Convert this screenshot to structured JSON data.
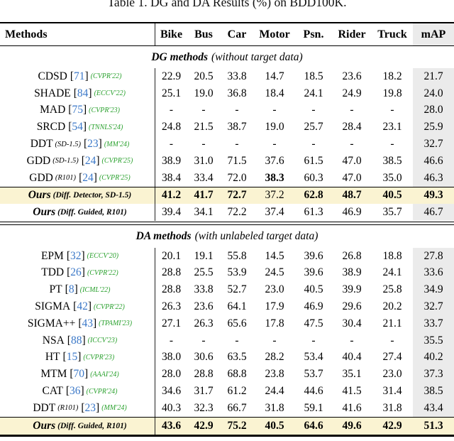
{
  "title": "Table 1. DG and DA Results (%) on BDD100K.",
  "colors": {
    "highlight_row": "#faf3d2",
    "map_column": "#ebebeb",
    "ref_blue": "#3b78c8",
    "venue_green": "#2aa12e"
  },
  "chart_data": {
    "type": "table",
    "title": "Table 1. DG and DA Results (%) on BDD100K.",
    "columns": [
      "Methods",
      "Bike",
      "Bus",
      "Car",
      "Motor",
      "Psn.",
      "Rider",
      "Truck",
      "mAP"
    ],
    "sections": [
      {
        "name": "DG methods",
        "desc": "(without target data)",
        "rows": [
          {
            "method": "CDSD",
            "variant": "",
            "ref": "71",
            "venue": "(CVPR'22)",
            "values": [
              "22.9",
              "20.5",
              "33.8",
              "14.7",
              "18.5",
              "23.6",
              "18.2",
              "21.7"
            ]
          },
          {
            "method": "SHADE",
            "variant": "",
            "ref": "84",
            "venue": "(ECCV'22)",
            "values": [
              "25.1",
              "19.0",
              "36.8",
              "18.4",
              "24.1",
              "24.9",
              "19.8",
              "24.0"
            ]
          },
          {
            "method": "MAD",
            "variant": "",
            "ref": "75",
            "venue": "(CVPR'23)",
            "values": [
              "-",
              "-",
              "-",
              "-",
              "-",
              "-",
              "-",
              "28.0"
            ]
          },
          {
            "method": "SRCD",
            "variant": "",
            "ref": "54",
            "venue": "(TNNLS'24)",
            "values": [
              "24.8",
              "21.5",
              "38.7",
              "19.0",
              "25.7",
              "28.4",
              "23.1",
              "25.9"
            ]
          },
          {
            "method": "DDT",
            "variant": "(SD-1.5)",
            "ref": "23",
            "venue": "(MM'24)",
            "values": [
              "-",
              "-",
              "-",
              "-",
              "-",
              "-",
              "-",
              "32.7"
            ]
          },
          {
            "method": "GDD",
            "variant": "(SD-1.5)",
            "ref": "24",
            "venue": "(CVPR'25)",
            "values": [
              "38.9",
              "31.0",
              "71.5",
              "37.6",
              "61.5",
              "47.0",
              "38.5",
              "46.6"
            ]
          },
          {
            "method": "GDD",
            "variant": "(R101)",
            "ref": "24",
            "venue": "(CVPR'25)",
            "values": [
              "38.4",
              "33.4",
              "72.0",
              "38.3",
              "60.3",
              "47.0",
              "35.0",
              "46.3"
            ],
            "bold": [
              0,
              0,
              0,
              1,
              0,
              0,
              0,
              0
            ]
          }
        ],
        "ours_rows": [
          {
            "method": "Ours",
            "variant": "(Diff. Detector, SD-1.5)",
            "highlight": true,
            "values": [
              "41.2",
              "41.7",
              "72.7",
              "37.2",
              "62.8",
              "48.7",
              "40.5",
              "49.3"
            ],
            "bold": [
              1,
              1,
              1,
              0,
              1,
              1,
              1,
              1
            ]
          },
          {
            "method": "Ours",
            "variant": "(Diff. Guided, R101)",
            "highlight": false,
            "values": [
              "39.4",
              "34.1",
              "72.2",
              "37.4",
              "61.3",
              "46.9",
              "35.7",
              "46.7"
            ]
          }
        ]
      },
      {
        "name": "DA methods",
        "desc": "(with unlabeled target data)",
        "rows": [
          {
            "method": "EPM",
            "variant": "",
            "ref": "32",
            "venue": "(ECCV'20)",
            "values": [
              "20.1",
              "19.1",
              "55.8",
              "14.5",
              "39.6",
              "26.8",
              "18.8",
              "27.8"
            ]
          },
          {
            "method": "TDD",
            "variant": "",
            "ref": "26",
            "venue": "(CVPR'22)",
            "values": [
              "28.8",
              "25.5",
              "53.9",
              "24.5",
              "39.6",
              "38.9",
              "24.1",
              "33.6"
            ]
          },
          {
            "method": "PT",
            "variant": "",
            "ref": "8",
            "venue": "(ICML'22)",
            "values": [
              "28.8",
              "33.8",
              "52.7",
              "23.0",
              "40.5",
              "39.9",
              "25.8",
              "34.9"
            ]
          },
          {
            "method": "SIGMA",
            "variant": "",
            "ref": "42",
            "venue": "(CVPR'22)",
            "values": [
              "26.3",
              "23.6",
              "64.1",
              "17.9",
              "46.9",
              "29.6",
              "20.2",
              "32.7"
            ]
          },
          {
            "method": "SIGMA++",
            "variant": "",
            "ref": "43",
            "venue": "(TPAMI'23)",
            "values": [
              "27.1",
              "26.3",
              "65.6",
              "17.8",
              "47.5",
              "30.4",
              "21.1",
              "33.7"
            ]
          },
          {
            "method": "NSA",
            "variant": "",
            "ref": "88",
            "venue": "(ICCV'23)",
            "values": [
              "-",
              "-",
              "-",
              "-",
              "-",
              "-",
              "-",
              "35.5"
            ]
          },
          {
            "method": "HT",
            "variant": "",
            "ref": "15",
            "venue": "(CVPR'23)",
            "values": [
              "38.0",
              "30.6",
              "63.5",
              "28.2",
              "53.4",
              "40.4",
              "27.4",
              "40.2"
            ]
          },
          {
            "method": "MTM",
            "variant": "",
            "ref": "70",
            "venue": "(AAAI'24)",
            "values": [
              "28.0",
              "28.8",
              "68.8",
              "23.8",
              "53.7",
              "35.1",
              "23.0",
              "37.3"
            ]
          },
          {
            "method": "CAT",
            "variant": "",
            "ref": "36",
            "venue": "(CVPR'24)",
            "values": [
              "34.6",
              "31.7",
              "61.2",
              "24.4",
              "44.6",
              "41.5",
              "31.4",
              "38.5"
            ]
          },
          {
            "method": "DDT",
            "variant": "(R101)",
            "ref": "23",
            "venue": "(MM'24)",
            "values": [
              "40.3",
              "32.3",
              "66.7",
              "31.8",
              "59.1",
              "41.6",
              "31.8",
              "43.4"
            ]
          }
        ],
        "ours_rows": [
          {
            "method": "Ours",
            "variant": "(Diff. Guided, R101)",
            "highlight": true,
            "values": [
              "43.6",
              "42.9",
              "75.2",
              "40.5",
              "64.6",
              "49.6",
              "42.9",
              "51.3"
            ],
            "bold": [
              1,
              1,
              1,
              1,
              1,
              1,
              1,
              1
            ]
          }
        ]
      }
    ]
  }
}
